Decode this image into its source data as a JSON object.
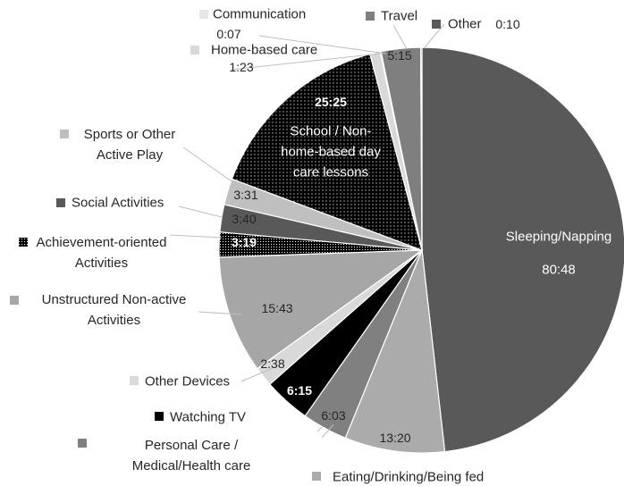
{
  "chart_data": {
    "type": "pie",
    "categories": [
      "Sleeping/Napping",
      "Eating/Drinking/Being fed",
      "Personal Care / Medical/Health care",
      "Watching TV",
      "Other Devices",
      "Unstructured Non-active Activities",
      "Achievement-oriented Activities",
      "Social Activities",
      "Sports or Other Active Play",
      "School / Non-home-based day care lessons",
      "Home-based care",
      "Communication",
      "Travel",
      "Other"
    ],
    "values": [
      4848,
      800,
      363,
      375,
      158,
      943,
      199,
      220,
      211,
      1525,
      83,
      7,
      315,
      10
    ],
    "value_labels": [
      "80:48",
      "13:20",
      "6:03",
      "6:15",
      "2:38",
      "15:43",
      "3:19",
      "3:40",
      "3:31",
      "25:25",
      "1:23",
      "0:07",
      "5:15",
      "0:10"
    ],
    "colors": [
      "#595959",
      "#ababab",
      "#808080",
      "#000000",
      "#d9d9d9",
      "#a6a6a6",
      "#000000",
      "#595959",
      "#bfbfbf",
      "#000000",
      "#d9d9d9",
      "#e6e6e6",
      "#7f7f7f",
      "#595959"
    ]
  }
}
